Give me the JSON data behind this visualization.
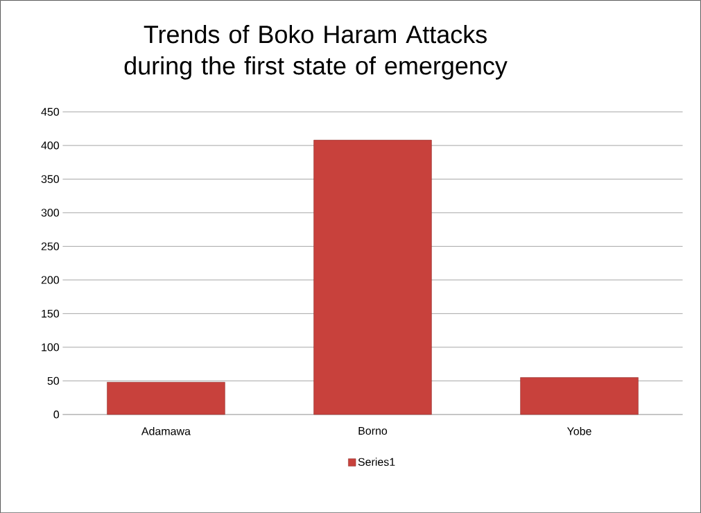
{
  "chart_data": {
    "type": "bar",
    "title": "Trends of Boko Haram Attacks during  the first state of emergency",
    "categories": [
      "Adamawa",
      "Borno",
      "Yobe"
    ],
    "series": [
      {
        "name": "Series1",
        "color": "#c8413c",
        "values": [
          48,
          408,
          55
        ]
      }
    ],
    "ylim": [
      0,
      450
    ],
    "yticks": [
      0,
      50,
      100,
      150,
      200,
      250,
      300,
      350,
      400,
      450
    ],
    "grid": "y",
    "legend": "bottom"
  }
}
